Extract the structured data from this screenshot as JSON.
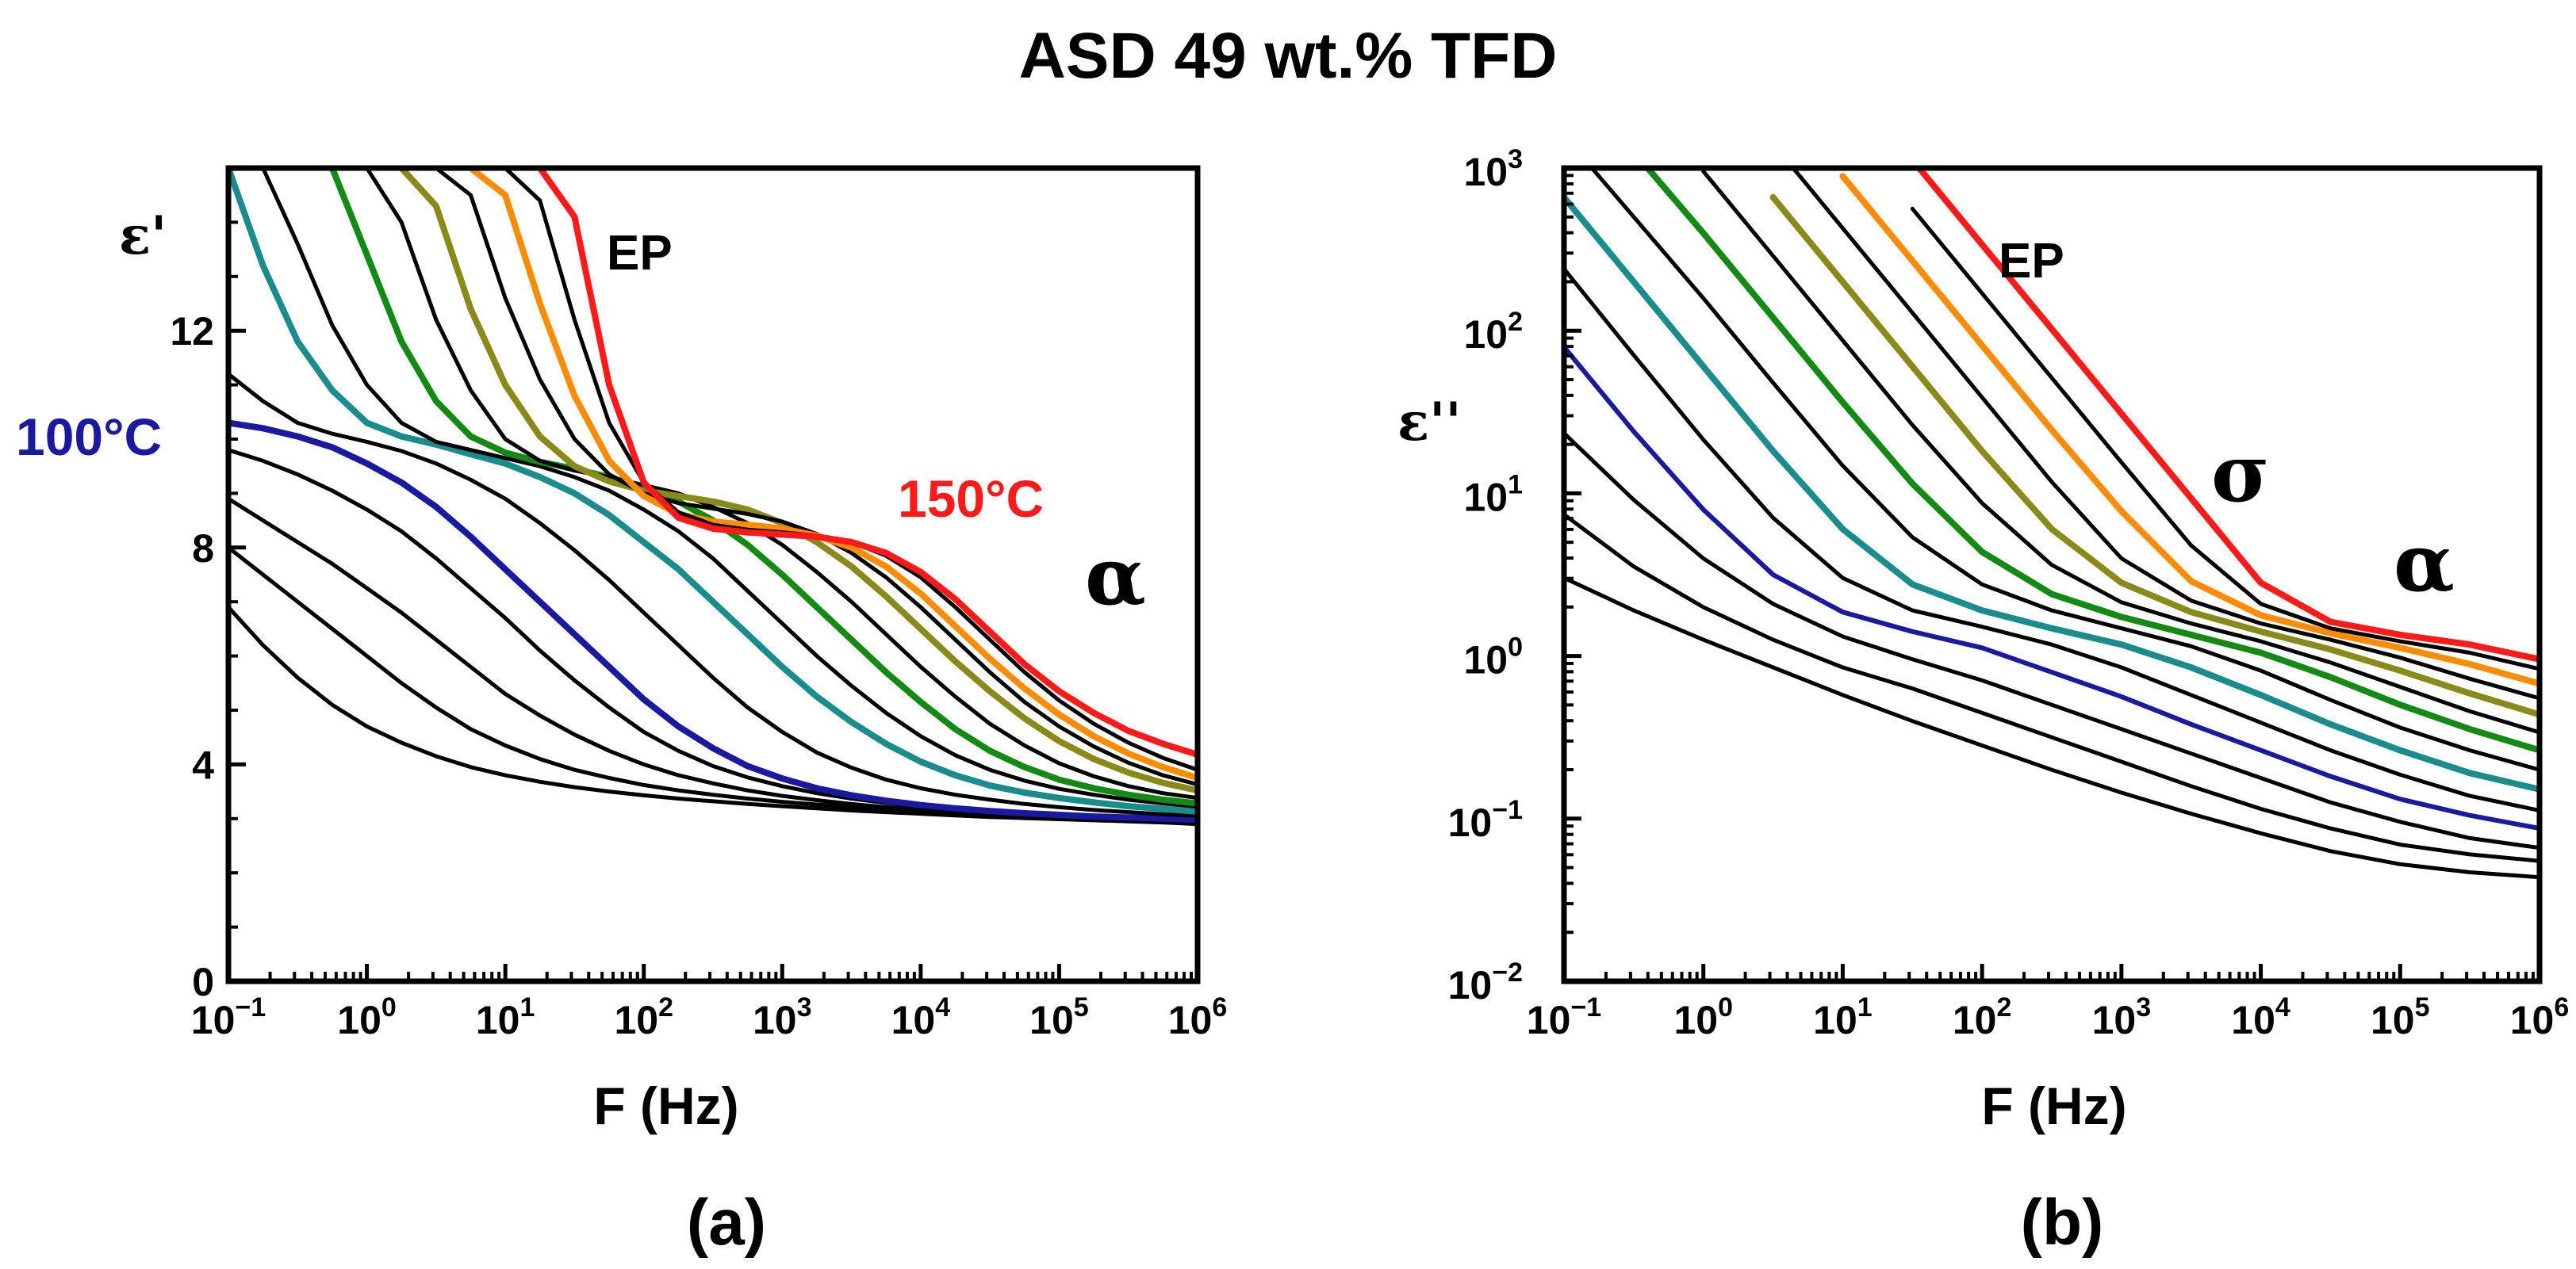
{
  "title": "ASD 49 wt.% TFD",
  "colors": {
    "black": "#000000",
    "blue": "#1a1aa0",
    "teal": "#1a8c8c",
    "green": "#138a13",
    "olive": "#8a8a1a",
    "orange": "#ff8c00",
    "red": "#ff1a1a"
  },
  "chart_data": [
    {
      "id": "a",
      "type": "line",
      "panel_label": "(a)",
      "xlabel": "F (Hz)",
      "ylabel": "ε'",
      "xscale": "log",
      "yscale": "linear",
      "xlim": [
        0.1,
        1000000
      ],
      "ylim": [
        0,
        15
      ],
      "xticks": [
        {
          "base": "10",
          "exp": "−1"
        },
        {
          "base": "10",
          "exp": "0"
        },
        {
          "base": "10",
          "exp": "1"
        },
        {
          "base": "10",
          "exp": "2"
        },
        {
          "base": "10",
          "exp": "3"
        },
        {
          "base": "10",
          "exp": "4"
        },
        {
          "base": "10",
          "exp": "5"
        },
        {
          "base": "10",
          "exp": "6"
        }
      ],
      "yticks": [
        "0",
        "4",
        "8",
        "12"
      ],
      "ytick_values": [
        0,
        4,
        8,
        12
      ],
      "annotations": [
        {
          "text": "EP",
          "style": "ep"
        },
        {
          "text": "100°C",
          "style": "t-low",
          "color": "#1a1aa0"
        },
        {
          "text": "150°C",
          "style": "t-high",
          "color": "#ff1a1a"
        },
        {
          "text": "α",
          "style": "greek"
        }
      ],
      "x": [
        -1,
        -0.75,
        -0.5,
        -0.25,
        0,
        0.25,
        0.5,
        0.75,
        1,
        1.25,
        1.5,
        1.75,
        2,
        2.25,
        2.5,
        2.75,
        3,
        3.25,
        3.5,
        3.75,
        4,
        4.25,
        4.5,
        4.75,
        5,
        5.25,
        5.5,
        5.75,
        6
      ],
      "series": [
        {
          "name": "T1",
          "color": "black",
          "width": 5,
          "values": [
            6.9,
            6.2,
            5.6,
            5.1,
            4.7,
            4.4,
            4.15,
            3.95,
            3.8,
            3.68,
            3.58,
            3.5,
            3.43,
            3.37,
            3.32,
            3.27,
            3.23,
            3.19,
            3.15,
            3.12,
            3.09,
            3.06,
            3.03,
            3.01,
            2.99,
            2.97,
            2.95,
            2.93,
            2.9
          ]
        },
        {
          "name": "T2",
          "color": "black",
          "width": 5,
          "values": [
            8.0,
            7.5,
            7.0,
            6.5,
            6.0,
            5.5,
            5.05,
            4.65,
            4.35,
            4.1,
            3.9,
            3.75,
            3.62,
            3.52,
            3.44,
            3.37,
            3.31,
            3.26,
            3.22,
            3.18,
            3.14,
            3.11,
            3.08,
            3.05,
            3.02,
            3.0,
            2.98,
            2.96,
            2.93
          ]
        },
        {
          "name": "T3",
          "color": "black",
          "width": 5,
          "values": [
            8.9,
            8.5,
            8.1,
            7.7,
            7.25,
            6.8,
            6.3,
            5.8,
            5.3,
            4.9,
            4.55,
            4.25,
            4.0,
            3.8,
            3.65,
            3.52,
            3.42,
            3.34,
            3.27,
            3.21,
            3.16,
            3.12,
            3.09,
            3.06,
            3.03,
            3.01,
            2.99,
            2.97,
            2.95
          ]
        },
        {
          "name": "T4",
          "color": "black",
          "width": 5,
          "values": [
            9.8,
            9.6,
            9.35,
            9.05,
            8.7,
            8.3,
            7.8,
            7.25,
            6.7,
            6.1,
            5.55,
            5.05,
            4.6,
            4.25,
            3.97,
            3.76,
            3.6,
            3.47,
            3.37,
            3.29,
            3.22,
            3.16,
            3.12,
            3.08,
            3.05,
            3.02,
            3.0,
            2.98,
            2.95
          ]
        },
        {
          "name": "100°C",
          "color": "blue",
          "width": 8,
          "values": [
            10.3,
            10.2,
            10.05,
            9.85,
            9.55,
            9.2,
            8.75,
            8.2,
            7.6,
            7.0,
            6.4,
            5.8,
            5.2,
            4.7,
            4.3,
            3.97,
            3.74,
            3.56,
            3.43,
            3.33,
            3.25,
            3.19,
            3.14,
            3.1,
            3.07,
            3.04,
            3.02,
            3.0,
            2.98
          ]
        },
        {
          "name": "T6",
          "color": "black",
          "width": 5,
          "values": [
            11.2,
            10.7,
            10.3,
            10.1,
            9.95,
            9.78,
            9.55,
            9.25,
            8.9,
            8.45,
            7.95,
            7.4,
            6.8,
            6.2,
            5.6,
            5.05,
            4.6,
            4.22,
            3.94,
            3.72,
            3.56,
            3.44,
            3.35,
            3.27,
            3.21,
            3.16,
            3.12,
            3.08,
            3.05
          ]
        },
        {
          "name": "T7",
          "color": "teal",
          "width": 8,
          "values": [
            15,
            13.2,
            11.8,
            10.9,
            10.3,
            10.05,
            9.9,
            9.72,
            9.55,
            9.3,
            9.0,
            8.6,
            8.1,
            7.6,
            7.0,
            6.4,
            5.8,
            5.25,
            4.78,
            4.38,
            4.05,
            3.8,
            3.61,
            3.48,
            3.38,
            3.3,
            3.23,
            3.18,
            3.13
          ]
        },
        {
          "name": "T8",
          "color": "black",
          "width": 5,
          "values": [
            null,
            15,
            13.6,
            12.1,
            11.0,
            10.3,
            9.95,
            9.8,
            9.65,
            9.5,
            9.3,
            9.05,
            8.7,
            8.3,
            7.8,
            7.2,
            6.6,
            6.0,
            5.45,
            4.95,
            4.52,
            4.17,
            3.9,
            3.7,
            3.55,
            3.44,
            3.35,
            3.28,
            3.22
          ]
        },
        {
          "name": "T9",
          "color": "green",
          "width": 8,
          "values": [
            null,
            null,
            null,
            15,
            13.4,
            11.8,
            10.7,
            10.05,
            9.75,
            9.58,
            9.45,
            9.3,
            9.1,
            8.85,
            8.5,
            8.05,
            7.5,
            6.9,
            6.3,
            5.7,
            5.15,
            4.65,
            4.25,
            3.95,
            3.72,
            3.56,
            3.44,
            3.35,
            3.28
          ]
        },
        {
          "name": "T10",
          "color": "black",
          "width": 5,
          "values": [
            null,
            null,
            null,
            null,
            15,
            14.0,
            12.2,
            10.9,
            10.0,
            9.6,
            9.42,
            9.3,
            9.15,
            9.0,
            8.75,
            8.45,
            8.05,
            7.55,
            7.0,
            6.4,
            5.8,
            5.25,
            4.75,
            4.35,
            4.02,
            3.78,
            3.6,
            3.47,
            3.38
          ]
        },
        {
          "name": "T11",
          "color": "olive",
          "width": 8,
          "values": [
            null,
            null,
            null,
            null,
            null,
            15,
            14.3,
            12.4,
            11.0,
            10.05,
            9.5,
            9.22,
            9.05,
            8.95,
            8.85,
            8.7,
            8.45,
            8.1,
            7.65,
            7.1,
            6.5,
            5.9,
            5.35,
            4.85,
            4.43,
            4.1,
            3.85,
            3.66,
            3.52
          ]
        },
        {
          "name": "T12",
          "color": "black",
          "width": 5,
          "values": [
            null,
            null,
            null,
            null,
            null,
            null,
            15,
            14.5,
            12.6,
            11.1,
            10.0,
            9.35,
            9.0,
            8.82,
            8.72,
            8.62,
            8.48,
            8.25,
            7.9,
            7.45,
            6.9,
            6.3,
            5.7,
            5.15,
            4.7,
            4.33,
            4.03,
            3.8,
            3.63
          ]
        },
        {
          "name": "T13",
          "color": "orange",
          "width": 8,
          "values": [
            null,
            null,
            null,
            null,
            null,
            null,
            null,
            15,
            14.5,
            12.5,
            10.8,
            9.6,
            8.95,
            8.62,
            8.48,
            8.42,
            8.35,
            8.22,
            8.0,
            7.65,
            7.15,
            6.55,
            5.95,
            5.4,
            4.92,
            4.52,
            4.2,
            3.95,
            3.75
          ]
        },
        {
          "name": "T14",
          "color": "black",
          "width": 5,
          "values": [
            null,
            null,
            null,
            null,
            null,
            null,
            null,
            null,
            15,
            14.4,
            12.2,
            10.3,
            9.2,
            8.65,
            8.42,
            8.33,
            8.28,
            8.22,
            8.1,
            7.85,
            7.45,
            6.9,
            6.3,
            5.7,
            5.18,
            4.75,
            4.4,
            4.12,
            3.9
          ]
        },
        {
          "name": "150°C",
          "color": "red",
          "width": 8,
          "values": [
            null,
            null,
            null,
            null,
            null,
            null,
            null,
            null,
            null,
            15,
            14.1,
            11.0,
            9.2,
            8.55,
            8.35,
            8.28,
            8.24,
            8.2,
            8.1,
            7.9,
            7.55,
            7.05,
            6.45,
            5.85,
            5.35,
            4.95,
            4.62,
            4.38,
            4.18
          ]
        }
      ]
    },
    {
      "id": "b",
      "type": "line",
      "panel_label": "(b)",
      "xlabel": "F (Hz)",
      "ylabel": "ε''",
      "xscale": "log",
      "yscale": "log",
      "xlim": [
        0.1,
        1000000
      ],
      "ylim": [
        0.01,
        1000
      ],
      "xticks": [
        {
          "base": "10",
          "exp": "−1"
        },
        {
          "base": "10",
          "exp": "0"
        },
        {
          "base": "10",
          "exp": "1"
        },
        {
          "base": "10",
          "exp": "2"
        },
        {
          "base": "10",
          "exp": "3"
        },
        {
          "base": "10",
          "exp": "4"
        },
        {
          "base": "10",
          "exp": "5"
        },
        {
          "base": "10",
          "exp": "6"
        }
      ],
      "yticks": [
        {
          "base": "10",
          "exp": "−2"
        },
        {
          "base": "10",
          "exp": "−1"
        },
        {
          "base": "10",
          "exp": "0"
        },
        {
          "base": "10",
          "exp": "1"
        },
        {
          "base": "10",
          "exp": "2"
        },
        {
          "base": "10",
          "exp": "3"
        }
      ],
      "ytick_values": [
        -2,
        -1,
        0,
        1,
        2,
        3
      ],
      "annotations": [
        {
          "text": "EP",
          "style": "ep"
        },
        {
          "text": "σ",
          "style": "greek"
        },
        {
          "text": "α",
          "style": "greek"
        }
      ],
      "x": [
        -1,
        -0.5,
        0,
        0.5,
        1,
        1.5,
        2,
        2.5,
        3,
        3.5,
        4,
        4.5,
        5,
        5.5,
        6
      ],
      "series": [
        {
          "name": "T1",
          "color": "black",
          "width": 5,
          "values_log10": [
            0.48,
            0.28,
            0.1,
            -0.07,
            -0.24,
            -0.4,
            -0.55,
            -0.7,
            -0.84,
            -0.97,
            -1.09,
            -1.2,
            -1.28,
            -1.33,
            -1.36
          ]
        },
        {
          "name": "T2",
          "color": "black",
          "width": 5,
          "values_log10": [
            0.87,
            0.55,
            0.3,
            0.1,
            -0.07,
            -0.2,
            -0.35,
            -0.5,
            -0.65,
            -0.8,
            -0.94,
            -1.06,
            -1.16,
            -1.22,
            -1.26
          ]
        },
        {
          "name": "T3",
          "color": "black",
          "width": 5,
          "values_log10": [
            1.37,
            0.96,
            0.6,
            0.32,
            0.12,
            -0.02,
            -0.15,
            -0.3,
            -0.45,
            -0.6,
            -0.75,
            -0.9,
            -1.02,
            -1.12,
            -1.18
          ]
        },
        {
          "name": "100°C",
          "color": "blue",
          "width": 6,
          "values_log10": [
            1.9,
            1.38,
            0.9,
            0.5,
            0.27,
            0.15,
            0.05,
            -0.1,
            -0.25,
            -0.42,
            -0.58,
            -0.74,
            -0.88,
            -0.98,
            -1.06
          ]
        },
        {
          "name": "T5",
          "color": "black",
          "width": 5,
          "values_log10": [
            2.38,
            1.85,
            1.33,
            0.85,
            0.48,
            0.28,
            0.18,
            0.07,
            -0.07,
            -0.24,
            -0.41,
            -0.58,
            -0.73,
            -0.86,
            -0.95
          ]
        },
        {
          "name": "T6",
          "color": "teal",
          "width": 8,
          "values_log10": [
            2.82,
            2.3,
            1.78,
            1.26,
            0.78,
            0.44,
            0.28,
            0.17,
            0.07,
            -0.07,
            -0.24,
            -0.42,
            -0.58,
            -0.72,
            -0.82
          ]
        },
        {
          "name": "T7",
          "color": "black",
          "width": 5,
          "values_log10": [
            3.2,
            2.7,
            2.2,
            1.68,
            1.17,
            0.73,
            0.44,
            0.28,
            0.17,
            0.06,
            -0.09,
            -0.27,
            -0.44,
            -0.58,
            -0.7
          ]
        },
        {
          "name": "T8",
          "color": "green",
          "width": 8,
          "values_log10": [
            null,
            3.1,
            2.6,
            2.08,
            1.56,
            1.06,
            0.64,
            0.38,
            0.24,
            0.13,
            0.02,
            -0.13,
            -0.3,
            -0.45,
            -0.58
          ]
        },
        {
          "name": "T9",
          "color": "black",
          "width": 5,
          "values_log10": [
            null,
            null,
            2.98,
            2.46,
            1.94,
            1.42,
            0.94,
            0.56,
            0.33,
            0.2,
            0.09,
            -0.04,
            -0.19,
            -0.34,
            -0.47
          ]
        },
        {
          "name": "T10",
          "color": "olive",
          "width": 8,
          "values_log10": [
            null,
            null,
            null,
            2.82,
            2.3,
            1.78,
            1.26,
            0.78,
            0.45,
            0.27,
            0.15,
            0.04,
            -0.09,
            -0.23,
            -0.36
          ]
        },
        {
          "name": "T11",
          "color": "black",
          "width": 5,
          "values_log10": [
            null,
            null,
            null,
            3.15,
            2.63,
            2.11,
            1.59,
            1.07,
            0.6,
            0.34,
            0.2,
            0.1,
            -0.01,
            -0.14,
            -0.26
          ]
        },
        {
          "name": "T12",
          "color": "orange",
          "width": 8,
          "values_log10": [
            null,
            null,
            null,
            null,
            2.95,
            2.43,
            1.91,
            1.39,
            0.89,
            0.46,
            0.25,
            0.14,
            0.05,
            -0.05,
            -0.17
          ]
        },
        {
          "name": "T13",
          "color": "black",
          "width": 5,
          "values_log10": [
            null,
            null,
            null,
            null,
            null,
            2.75,
            2.23,
            1.71,
            1.19,
            0.68,
            0.32,
            0.17,
            0.09,
            0.02,
            -0.08
          ]
        },
        {
          "name": "150°C",
          "color": "red",
          "width": 8,
          "values_log10": [
            null,
            null,
            null,
            null,
            null,
            3.05,
            2.53,
            2.01,
            1.49,
            0.97,
            0.45,
            0.21,
            0.13,
            0.07,
            -0.02
          ]
        }
      ]
    }
  ]
}
